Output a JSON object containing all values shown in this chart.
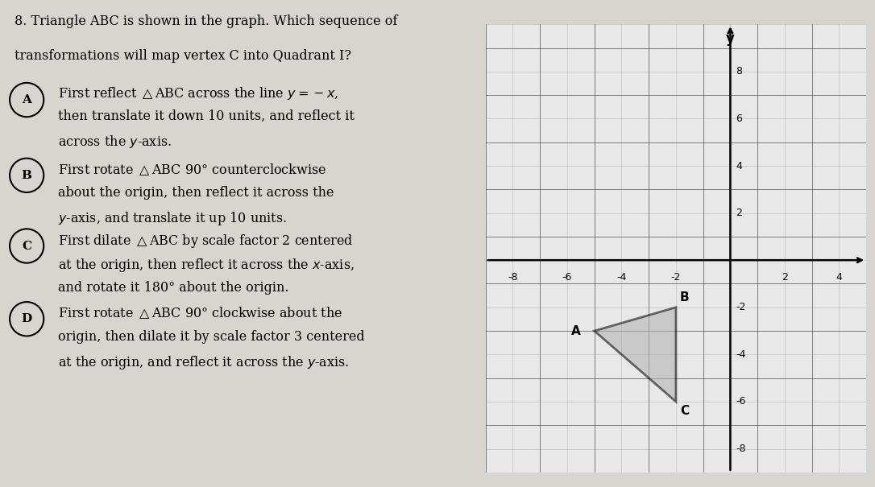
{
  "triangle_vertices": {
    "A": [
      -5,
      -3
    ],
    "B": [
      -2,
      -2
    ],
    "C": [
      -2,
      -6
    ]
  },
  "triangle_fill_color": "#b0b0b0",
  "triangle_edge_color": "#000000",
  "triangle_alpha": 0.55,
  "axis_xlim": [
    -9,
    5
  ],
  "axis_ylim": [
    -9,
    10
  ],
  "x_ticks": [
    -8,
    -6,
    -4,
    -2,
    2,
    4
  ],
  "y_ticks": [
    -8,
    -6,
    -4,
    -2,
    2,
    4,
    6,
    8
  ],
  "grid_minor_color": "#888888",
  "grid_major_color": "#333333",
  "axis_linewidth": 1.8,
  "tick_fontsize": 9,
  "vertex_label_fontsize": 11,
  "figure_bg_color": "#d8d5d0",
  "graph_bg_color": "#e8e8e8",
  "text_color": "#000000",
  "question_fontsize": 13,
  "option_fontsize": 13,
  "option_label_fontsize": 13
}
